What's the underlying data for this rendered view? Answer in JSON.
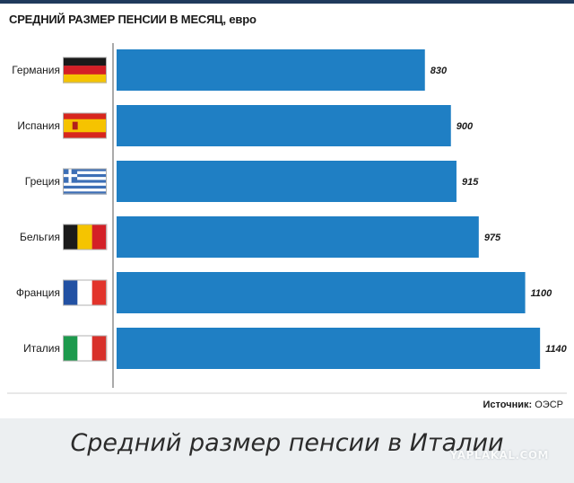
{
  "chart_data": {
    "type": "bar",
    "orientation": "horizontal",
    "title": "СРЕДНИЙ РАЗМЕР ПЕНСИИ В МЕСЯЦ,",
    "unit": "евро",
    "categories": [
      "Германия",
      "Испания",
      "Греция",
      "Бельгия",
      "Франция",
      "Италия"
    ],
    "values": [
      830,
      900,
      915,
      975,
      1100,
      1140
    ],
    "value_labels": [
      "830",
      "900",
      "915",
      "975",
      "1100",
      "1140"
    ],
    "flags": [
      "germany-flag",
      "spain-flag",
      "greece-flag",
      "belgium-flag",
      "france-flag",
      "italy-flag"
    ],
    "xlim": [
      0,
      1200
    ],
    "bar_color": "#1f7fc4",
    "grid": false,
    "legend": "none"
  },
  "source": {
    "label": "Источник:",
    "value": "ОЭСР"
  },
  "caption": "Средний размер пенсии в Италии",
  "watermark": "YAPLAKAL.COM"
}
